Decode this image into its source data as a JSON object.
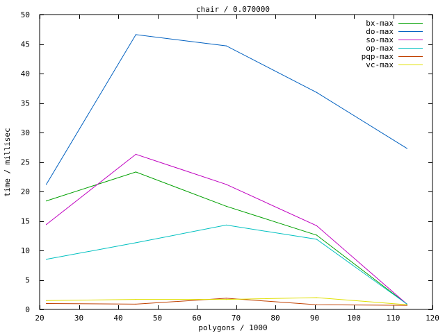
{
  "chart_data": {
    "type": "line",
    "title": "chair / 0.070000",
    "xlabel": "polygons / 1000",
    "ylabel": "time / millisec",
    "xlim": [
      20,
      120
    ],
    "ylim": [
      0,
      50
    ],
    "xticks": [
      20,
      30,
      40,
      50,
      60,
      70,
      80,
      90,
      100,
      110,
      120
    ],
    "yticks": [
      0,
      5,
      10,
      15,
      20,
      25,
      30,
      35,
      40,
      45,
      50
    ],
    "legend_position": "top-right",
    "grid": false,
    "x": [
      21.7,
      44.5,
      67.5,
      90.5,
      113.5
    ],
    "series": [
      {
        "name": "bx-max",
        "color": "#00a000",
        "values": [
          18.4,
          23.3,
          17.5,
          12.6,
          0.9
        ]
      },
      {
        "name": "do-max",
        "color": "#0060c0",
        "values": [
          21.2,
          46.6,
          44.7,
          36.8,
          27.3
        ]
      },
      {
        "name": "so-max",
        "color": "#c000c0",
        "values": [
          14.4,
          26.3,
          21.2,
          14.2,
          0.9
        ]
      },
      {
        "name": "op-max",
        "color": "#00c0c0",
        "values": [
          8.5,
          11.3,
          14.3,
          11.9,
          0.9
        ]
      },
      {
        "name": "pqp-max",
        "color": "#c04000",
        "values": [
          1.0,
          0.9,
          1.9,
          0.8,
          0.7
        ]
      },
      {
        "name": "vc-max",
        "color": "#e0e000",
        "values": [
          1.5,
          1.7,
          1.7,
          2.0,
          0.8
        ]
      }
    ]
  }
}
